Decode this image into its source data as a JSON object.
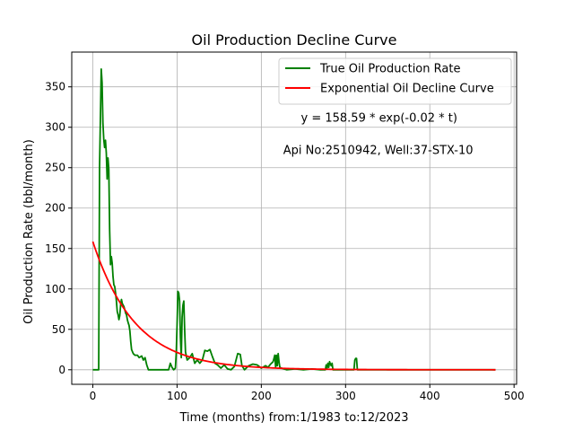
{
  "chart_data": {
    "type": "line",
    "title": "Oil Production Decline Curve",
    "xlabel": "Time (months) from:1/1983 to:12/2023",
    "ylabel": "Oil Production Rate (bbl/month)",
    "xlim": [
      -25,
      503
    ],
    "ylim": [
      -18,
      393
    ],
    "xticks": [
      0,
      100,
      200,
      300,
      400,
      500
    ],
    "yticks": [
      0,
      50,
      100,
      150,
      200,
      250,
      300,
      350
    ],
    "grid": true,
    "legend_position": "top-right",
    "annotations": [
      {
        "text": "y = 158.59 * exp(-0.02 * t)",
        "x": 247,
        "y": 307
      },
      {
        "text": "Api No:2510942, Well:37-STX-10",
        "x": 226,
        "y": 267
      }
    ],
    "series": [
      {
        "name": "True Oil Production Rate",
        "color": "#008000",
        "points": [
          [
            0,
            0
          ],
          [
            7,
            0
          ],
          [
            8,
            250
          ],
          [
            9,
            310
          ],
          [
            10,
            372
          ],
          [
            11,
            355
          ],
          [
            12,
            305
          ],
          [
            13,
            285
          ],
          [
            14,
            275
          ],
          [
            15,
            284
          ],
          [
            16,
            268
          ],
          [
            17,
            236
          ],
          [
            18,
            262
          ],
          [
            19,
            248
          ],
          [
            20,
            172
          ],
          [
            21,
            130
          ],
          [
            22,
            140
          ],
          [
            23,
            132
          ],
          [
            24,
            115
          ],
          [
            25,
            105
          ],
          [
            26,
            103
          ],
          [
            27,
            95
          ],
          [
            28,
            85
          ],
          [
            29,
            72
          ],
          [
            30,
            68
          ],
          [
            31,
            62
          ],
          [
            32,
            67
          ],
          [
            33,
            80
          ],
          [
            34,
            87
          ],
          [
            35,
            82
          ],
          [
            36,
            80
          ],
          [
            37,
            78
          ],
          [
            38,
            74
          ],
          [
            39,
            70
          ],
          [
            40,
            68
          ],
          [
            41,
            62
          ],
          [
            42,
            58
          ],
          [
            43,
            55
          ],
          [
            44,
            48
          ],
          [
            45,
            35
          ],
          [
            46,
            25
          ],
          [
            48,
            20
          ],
          [
            50,
            18
          ],
          [
            53,
            18
          ],
          [
            55,
            15
          ],
          [
            58,
            17
          ],
          [
            60,
            12
          ],
          [
            62,
            15
          ],
          [
            64,
            6
          ],
          [
            66,
            0
          ],
          [
            90,
            0
          ],
          [
            92,
            8
          ],
          [
            94,
            3
          ],
          [
            96,
            0
          ],
          [
            98,
            2
          ],
          [
            99,
            20
          ],
          [
            100,
            55
          ],
          [
            101,
            97
          ],
          [
            102,
            95
          ],
          [
            103,
            85
          ],
          [
            104,
            40
          ],
          [
            105,
            15
          ],
          [
            106,
            65
          ],
          [
            107,
            80
          ],
          [
            108,
            85
          ],
          [
            109,
            50
          ],
          [
            110,
            22
          ],
          [
            112,
            12
          ],
          [
            115,
            15
          ],
          [
            118,
            20
          ],
          [
            121,
            8
          ],
          [
            124,
            12
          ],
          [
            127,
            8
          ],
          [
            130,
            12
          ],
          [
            133,
            24
          ],
          [
            136,
            23
          ],
          [
            139,
            25
          ],
          [
            142,
            16
          ],
          [
            145,
            8
          ],
          [
            148,
            6
          ],
          [
            152,
            2
          ],
          [
            156,
            6
          ],
          [
            160,
            1
          ],
          [
            164,
            0
          ],
          [
            168,
            4
          ],
          [
            170,
            12
          ],
          [
            172,
            20
          ],
          [
            175,
            19
          ],
          [
            177,
            5
          ],
          [
            180,
            0
          ],
          [
            185,
            5
          ],
          [
            190,
            7
          ],
          [
            195,
            6
          ],
          [
            200,
            2
          ],
          [
            205,
            5
          ],
          [
            208,
            3
          ],
          [
            211,
            7
          ],
          [
            214,
            10
          ],
          [
            216,
            18
          ],
          [
            217,
            3
          ],
          [
            218,
            18
          ],
          [
            219,
            5
          ],
          [
            220,
            20
          ],
          [
            221,
            10
          ],
          [
            222,
            3
          ],
          [
            224,
            2
          ],
          [
            230,
            0
          ],
          [
            240,
            1
          ],
          [
            250,
            0
          ],
          [
            260,
            1
          ],
          [
            270,
            0
          ],
          [
            276,
            0
          ],
          [
            277,
            6
          ],
          [
            278,
            2
          ],
          [
            279,
            8
          ],
          [
            280,
            3
          ],
          [
            281,
            10
          ],
          [
            282,
            7
          ],
          [
            283,
            5
          ],
          [
            284,
            8
          ],
          [
            285,
            0
          ],
          [
            290,
            0
          ],
          [
            310,
            0
          ],
          [
            311,
            12
          ],
          [
            312,
            14
          ],
          [
            313,
            14
          ],
          [
            314,
            0
          ],
          [
            330,
            0
          ],
          [
            360,
            0
          ],
          [
            400,
            0
          ],
          [
            440,
            0
          ],
          [
            478,
            0
          ]
        ]
      },
      {
        "name": "Exponential Oil Decline Curve",
        "color": "#ff0000",
        "equation": "y = 158.59 * exp(-0.02 * t)",
        "a": 158.59,
        "b": -0.02,
        "x_range": [
          0,
          478
        ]
      }
    ]
  }
}
